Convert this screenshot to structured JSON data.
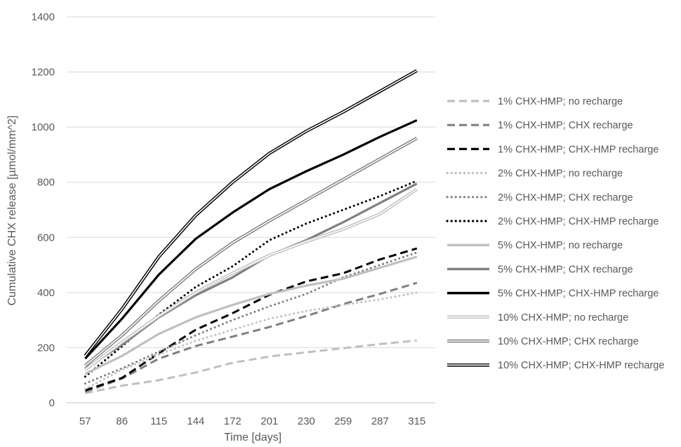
{
  "chart_data": {
    "type": "line",
    "xlabel": "Time [days]",
    "ylabel": "Cumulative CHX release [µmol/mm^2]",
    "x": [
      57,
      86,
      115,
      144,
      172,
      201,
      230,
      259,
      287,
      315
    ],
    "ylim": [
      0,
      1400
    ],
    "yticks": [
      0,
      200,
      400,
      600,
      800,
      1000,
      1200,
      1400
    ],
    "grid": "horizontal",
    "legend_position": "right",
    "series": [
      {
        "name": "1% CHX-HMP; no recharge",
        "color": "#bfbfbf",
        "style": "dashed",
        "values": [
          35,
          62,
          82,
          110,
          145,
          168,
          183,
          198,
          213,
          226
        ]
      },
      {
        "name": "1% CHX-HMP; CHX recharge",
        "color": "#808080",
        "style": "dashed",
        "values": [
          40,
          88,
          160,
          206,
          240,
          275,
          315,
          358,
          395,
          435
        ]
      },
      {
        "name": "1% CHX-HMP; CHX-HMP recharge",
        "color": "#000000",
        "style": "dashed",
        "values": [
          45,
          90,
          180,
          265,
          325,
          392,
          440,
          470,
          520,
          560
        ]
      },
      {
        "name": "2% CHX-HMP; no recharge",
        "color": "#bfbfbf",
        "style": "dotted",
        "values": [
          50,
          120,
          175,
          225,
          265,
          305,
          333,
          355,
          375,
          400
        ]
      },
      {
        "name": "2% CHX-HMP; CHX recharge",
        "color": "#808080",
        "style": "dotted",
        "values": [
          70,
          125,
          185,
          245,
          300,
          350,
          395,
          455,
          500,
          545
        ]
      },
      {
        "name": "2% CHX-HMP; CHX-HMP recharge",
        "color": "#000000",
        "style": "dotted",
        "values": [
          95,
          205,
          320,
          420,
          495,
          590,
          650,
          700,
          750,
          805
        ]
      },
      {
        "name": "5% CHX-HMP; no recharge",
        "color": "#bfbfbf",
        "style": "solid",
        "values": [
          105,
          170,
          250,
          310,
          355,
          395,
          425,
          450,
          490,
          530
        ]
      },
      {
        "name": "5% CHX-HMP; CHX recharge",
        "color": "#808080",
        "style": "solid",
        "values": [
          125,
          210,
          310,
          390,
          455,
          535,
          590,
          655,
          725,
          795
        ]
      },
      {
        "name": "5% CHX-HMP; CHX-HMP recharge",
        "color": "#000000",
        "style": "solid",
        "values": [
          160,
          305,
          465,
          595,
          690,
          775,
          840,
          900,
          965,
          1025
        ]
      },
      {
        "name": "10% CHX-HMP; no recharge",
        "color": "#bfbfbf",
        "style": "double",
        "values": [
          120,
          220,
          315,
          400,
          470,
          535,
          585,
          630,
          685,
          775
        ]
      },
      {
        "name": "10% CHX-HMP; CHX recharge",
        "color": "#808080",
        "style": "double",
        "values": [
          135,
          245,
          370,
          485,
          580,
          660,
          735,
          810,
          885,
          960
        ]
      },
      {
        "name": "10% CHX-HMP; CHX-HMP recharge",
        "color": "#000000",
        "style": "double",
        "values": [
          170,
          340,
          530,
          680,
          800,
          905,
          985,
          1055,
          1130,
          1205
        ]
      }
    ]
  }
}
